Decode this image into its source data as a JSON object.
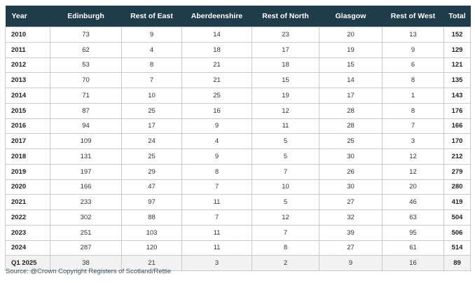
{
  "chart_data": {
    "type": "table",
    "columns": [
      "Year",
      "Edinburgh",
      "Rest of East",
      "Aberdeenshire",
      "Rest of North",
      "Glasgow",
      "Rest of West",
      "Total"
    ],
    "rows": [
      [
        "2010",
        "73",
        "9",
        "14",
        "23",
        "20",
        "13",
        "152"
      ],
      [
        "2011",
        "62",
        "4",
        "18",
        "17",
        "19",
        "9",
        "129"
      ],
      [
        "2012",
        "53",
        "8",
        "21",
        "18",
        "15",
        "6",
        "121"
      ],
      [
        "2013",
        "70",
        "7",
        "21",
        "15",
        "14",
        "8",
        "135"
      ],
      [
        "2014",
        "71",
        "10",
        "25",
        "19",
        "17",
        "1",
        "143"
      ],
      [
        "2015",
        "87",
        "25",
        "16",
        "12",
        "28",
        "8",
        "176"
      ],
      [
        "2016",
        "94",
        "17",
        "9",
        "11",
        "28",
        "7",
        "166"
      ],
      [
        "2017",
        "109",
        "24",
        "4",
        "5",
        "25",
        "3",
        "170"
      ],
      [
        "2018",
        "131",
        "25",
        "9",
        "5",
        "30",
        "12",
        "212"
      ],
      [
        "2019",
        "197",
        "29",
        "8",
        "7",
        "26",
        "12",
        "279"
      ],
      [
        "2020",
        "166",
        "47",
        "7",
        "10",
        "30",
        "20",
        "280"
      ],
      [
        "2021",
        "233",
        "97",
        "11",
        "5",
        "27",
        "46",
        "419"
      ],
      [
        "2022",
        "302",
        "88",
        "7",
        "12",
        "32",
        "63",
        "504"
      ],
      [
        "2023",
        "251",
        "103",
        "11",
        "7",
        "39",
        "95",
        "506"
      ],
      [
        "2024",
        "287",
        "120",
        "11",
        "8",
        "27",
        "61",
        "514"
      ],
      [
        "Q1 2025",
        "38",
        "21",
        "3",
        "2",
        "9",
        "16",
        "89"
      ]
    ],
    "header_color": "#1f3c4a",
    "last_row_shade": "#f2f2f2"
  },
  "source": "Source: @Crown Copyright Registers of Scotland/Rettie"
}
